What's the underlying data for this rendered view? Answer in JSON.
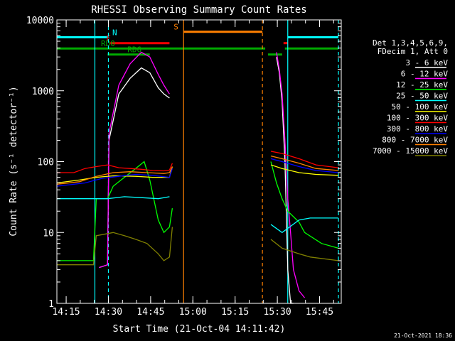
{
  "chart_data": {
    "type": "line",
    "title": "RHESSI Observing Summary Count Rates",
    "xlabel": "Start Time (21-Oct-04 14:11:42)",
    "ylabel": "Count Rate (s⁻¹ detector⁻¹)",
    "yscale": "log",
    "ylim": [
      1,
      10000
    ],
    "xlim_minutes": [
      0,
      101
    ],
    "x_ticks": [
      {
        "m": 3.3,
        "label": "14:15"
      },
      {
        "m": 18.3,
        "label": "14:30"
      },
      {
        "m": 33.3,
        "label": "14:45"
      },
      {
        "m": 48.3,
        "label": "15:00"
      },
      {
        "m": 63.3,
        "label": "15:15"
      },
      {
        "m": 78.3,
        "label": "15:30"
      },
      {
        "m": 93.3,
        "label": "15:45"
      }
    ],
    "y_tick_labels": [
      "1",
      "10",
      "100",
      "1000",
      "10000"
    ],
    "legend_title": [
      "Det 1,3,4,5,6,9,",
      "FDecim 1, Att 0"
    ],
    "series": [
      {
        "name": "3 - 6 keV",
        "color": "#ffffff",
        "segments": [
          [
            [
              15,
              3.2
            ],
            [
              18,
              3.5
            ],
            [
              18.5,
              200
            ],
            [
              22,
              900
            ],
            [
              26,
              1500
            ],
            [
              30,
              2100
            ],
            [
              33,
              1800
            ],
            [
              36,
              1100
            ],
            [
              38,
              900
            ],
            [
              40,
              790
            ]
          ],
          [
            [
              78,
              3000
            ],
            [
              79,
              1800
            ],
            [
              80,
              700
            ],
            [
              81,
              100
            ],
            [
              82,
              3
            ],
            [
              83,
              1
            ],
            [
              84,
              1
            ]
          ]
        ]
      },
      {
        "name": "6 - 12 keV",
        "color": "#ff00ff",
        "segments": [
          [
            [
              15,
              3.2
            ],
            [
              18,
              3.5
            ],
            [
              18.5,
              250
            ],
            [
              22,
              1200
            ],
            [
              26,
              2400
            ],
            [
              30,
              3500
            ],
            [
              33,
              3000
            ],
            [
              36,
              1700
            ],
            [
              38,
              1200
            ],
            [
              40,
              900
            ]
          ],
          [
            [
              78,
              3500
            ],
            [
              79,
              2000
            ],
            [
              80,
              900
            ],
            [
              81,
              200
            ],
            [
              82,
              30
            ],
            [
              83,
              10
            ],
            [
              84,
              3
            ],
            [
              86,
              1.5
            ],
            [
              88,
              1.2
            ]
          ]
        ]
      },
      {
        "name": "12 - 25 keV",
        "color": "#00ff00",
        "segments": [
          [
            [
              0,
              4
            ],
            [
              13,
              4
            ],
            [
              14,
              30
            ],
            [
              18,
              30
            ],
            [
              20,
              45
            ],
            [
              24,
              60
            ],
            [
              28,
              80
            ],
            [
              31,
              100
            ],
            [
              33,
              55
            ],
            [
              36,
              15
            ],
            [
              38,
              10
            ],
            [
              40,
              12
            ],
            [
              41,
              22
            ]
          ],
          [
            [
              76,
              100
            ],
            [
              78,
              50
            ],
            [
              80,
              30
            ],
            [
              82,
              20
            ],
            [
              86,
              14
            ],
            [
              88,
              10
            ],
            [
              94,
              7
            ],
            [
              100,
              6
            ]
          ]
        ]
      },
      {
        "name": "25 - 50 keV",
        "color": "#00ffff",
        "segments": [
          [
            [
              0,
              30
            ],
            [
              10,
              30
            ],
            [
              18,
              30
            ],
            [
              24,
              32
            ],
            [
              30,
              31
            ],
            [
              36,
              30
            ],
            [
              40,
              32
            ]
          ],
          [
            [
              76,
              13
            ],
            [
              80,
              10
            ],
            [
              86,
              15
            ],
            [
              90,
              16
            ],
            [
              100,
              16
            ]
          ]
        ]
      },
      {
        "name": "50 - 100 keV",
        "color": "#ffff00",
        "segments": [
          [
            [
              0,
              50
            ],
            [
              8,
              55
            ],
            [
              14,
              60
            ],
            [
              20,
              63
            ],
            [
              28,
              62
            ],
            [
              34,
              60
            ],
            [
              40,
              60
            ],
            [
              41,
              85
            ]
          ],
          [
            [
              76,
              90
            ],
            [
              80,
              80
            ],
            [
              86,
              70
            ],
            [
              92,
              66
            ],
            [
              100,
              64
            ]
          ]
        ]
      },
      {
        "name": "100 - 300 keV",
        "color": "#ff0000",
        "segments": [
          [
            [
              0,
              70
            ],
            [
              6,
              70
            ],
            [
              10,
              80
            ],
            [
              14,
              85
            ],
            [
              18,
              90
            ],
            [
              22,
              82
            ],
            [
              26,
              80
            ],
            [
              30,
              78
            ],
            [
              34,
              75
            ],
            [
              38,
              74
            ],
            [
              40,
              76
            ],
            [
              41,
              95
            ]
          ],
          [
            [
              76,
              140
            ],
            [
              80,
              130
            ],
            [
              86,
              110
            ],
            [
              92,
              90
            ],
            [
              100,
              82
            ]
          ]
        ]
      },
      {
        "name": "300 - 800 keV",
        "color": "#0000ff",
        "segments": [
          [
            [
              0,
              45
            ],
            [
              10,
              50
            ],
            [
              16,
              58
            ],
            [
              22,
              62
            ],
            [
              28,
              66
            ],
            [
              34,
              64
            ],
            [
              40,
              60
            ],
            [
              41,
              80
            ]
          ],
          [
            [
              76,
              110
            ],
            [
              80,
              100
            ],
            [
              86,
              85
            ],
            [
              92,
              75
            ],
            [
              100,
              70
            ]
          ]
        ]
      },
      {
        "name": "800 - 7000 keV",
        "color": "#ff8000",
        "segments": [
          [
            [
              0,
              48
            ],
            [
              8,
              52
            ],
            [
              14,
              62
            ],
            [
              20,
              70
            ],
            [
              26,
              72
            ],
            [
              32,
              70
            ],
            [
              38,
              68
            ],
            [
              40,
              70
            ],
            [
              41,
              85
            ]
          ],
          [
            [
              76,
              120
            ],
            [
              80,
              110
            ],
            [
              86,
              95
            ],
            [
              92,
              80
            ],
            [
              100,
              75
            ]
          ]
        ]
      },
      {
        "name": "7000 - 15000 keV",
        "color": "#808000",
        "segments": [
          [
            [
              0,
              3.5
            ],
            [
              13,
              3.5
            ],
            [
              14,
              9
            ],
            [
              20,
              10
            ],
            [
              24,
              9
            ],
            [
              28,
              8
            ],
            [
              32,
              7
            ],
            [
              36,
              5
            ],
            [
              38,
              4
            ],
            [
              40,
              4.5
            ],
            [
              41,
              12
            ]
          ],
          [
            [
              76,
              8
            ],
            [
              80,
              6
            ],
            [
              86,
              5
            ],
            [
              90,
              4.5
            ],
            [
              100,
              4
            ]
          ]
        ]
      }
    ],
    "flag_bars": [
      {
        "label": "N",
        "color": "#00ffff",
        "y": 5700,
        "ranges": [
          [
            0,
            18.3
          ],
          [
            82,
            100
          ]
        ]
      },
      {
        "label": "S",
        "color": "#ff8000",
        "y": 6800,
        "ranges": [
          [
            45,
            73
          ]
        ]
      },
      {
        "label": "F",
        "color": "#ff0000",
        "y": 4700,
        "ranges": [
          [
            19,
            40
          ],
          [
            80.5,
            82
          ]
        ]
      },
      {
        "label": "RD0",
        "color": "#00aa00",
        "y": 3950,
        "ranges": [
          [
            0,
            74
          ],
          [
            81,
            100
          ]
        ]
      },
      {
        "label": "RD6",
        "color": "#00aa00",
        "y": 3250,
        "ranges": [
          [
            18,
            33
          ],
          [
            75,
            80
          ]
        ]
      }
    ],
    "vlines": [
      {
        "m": 13.5,
        "color": "#00ffff",
        "dash": false
      },
      {
        "m": 18.3,
        "color": "#00ffff",
        "dash": true
      },
      {
        "m": 45,
        "color": "#ff8000",
        "dash": false
      },
      {
        "m": 73,
        "color": "#ff8000",
        "dash": true
      },
      {
        "m": 82,
        "color": "#00ffff",
        "dash": false
      },
      {
        "m": 100,
        "color": "#00ffff",
        "dash": true
      }
    ],
    "grid": false,
    "legend_placement": "right"
  },
  "footer_date": "21-Oct-2021 18:36"
}
